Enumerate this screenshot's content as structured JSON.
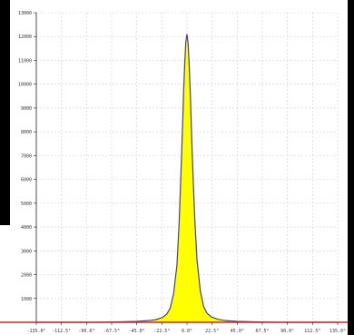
{
  "colors": {
    "background": "#ffffff",
    "grid": "#d0d0d0",
    "fill": "#ffff00",
    "curve": "#4040a0",
    "baseline": "#e02020",
    "axis": "#222222",
    "frame": "#000000"
  },
  "chart_data": {
    "type": "area",
    "title": "",
    "xlabel": "",
    "ylabel": "",
    "xlim": [
      -135,
      135
    ],
    "ylim": [
      0,
      13000
    ],
    "grid": true,
    "x_ticks": [
      -135,
      -112.5,
      -90,
      -67.5,
      -45,
      -22.5,
      0,
      22.5,
      45,
      67.5,
      90,
      112.5,
      135
    ],
    "x_tick_labels": [
      "-135.0°",
      "-112.5°",
      "-90.0°",
      "-67.5°",
      "-45.0°",
      "-22.5°",
      "0.0°",
      "22.5°",
      "45.0°",
      "67.5°",
      "90.0°",
      "112.5°",
      "135.0°"
    ],
    "y_ticks": [
      1000,
      2000,
      3000,
      4000,
      5000,
      6000,
      7000,
      8000,
      9000,
      10000,
      11000,
      12000,
      13000
    ],
    "y_tick_labels": [
      "1000",
      "2000",
      "3000",
      "4000",
      "5000",
      "6000",
      "7000",
      "8000",
      "9000",
      "10000",
      "11000",
      "12000",
      "13000"
    ],
    "series": [
      {
        "x": [
          -135,
          -80,
          -60,
          -45,
          -35,
          -28,
          -22,
          -18,
          -15,
          -12,
          -9,
          -7,
          -5,
          -4,
          -3,
          -2,
          -1,
          0,
          1,
          2,
          3,
          4,
          5,
          7,
          9,
          12,
          15,
          18,
          22,
          28,
          35,
          45,
          60,
          80,
          135
        ],
        "values": [
          0,
          0,
          20,
          40,
          70,
          110,
          200,
          350,
          600,
          1200,
          2400,
          4200,
          6800,
          8200,
          9700,
          10900,
          11800,
          12100,
          11700,
          10800,
          9600,
          8100,
          6700,
          4300,
          2600,
          1300,
          650,
          380,
          220,
          120,
          70,
          40,
          20,
          0,
          0
        ]
      }
    ]
  }
}
